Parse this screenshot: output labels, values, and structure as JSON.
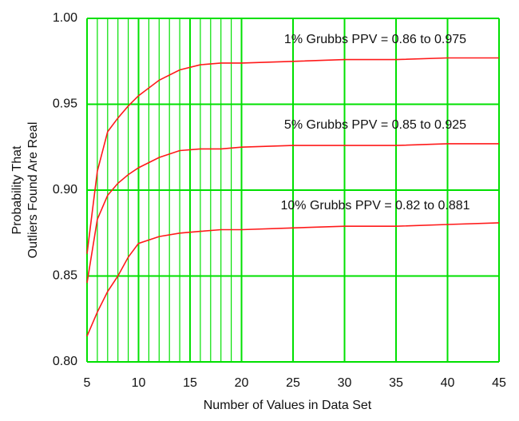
{
  "chart_data": {
    "type": "line",
    "xlabel": "Number of Values in Data Set",
    "ylabel": [
      "Probability That",
      "Outliers Found Are Real"
    ],
    "x": [
      5,
      6,
      7,
      8,
      9,
      10,
      12,
      14,
      16,
      18,
      20,
      25,
      30,
      35,
      40,
      45
    ],
    "series": [
      {
        "color": "#ff1a1a",
        "values": [
          0.863,
          0.911,
          0.934,
          0.942,
          0.949,
          0.955,
          0.964,
          0.97,
          0.973,
          0.974,
          0.974,
          0.975,
          0.976,
          0.976,
          0.977,
          0.977
        ]
      },
      {
        "color": "#ff1a1a",
        "values": [
          0.846,
          0.883,
          0.897,
          0.904,
          0.909,
          0.913,
          0.919,
          0.923,
          0.924,
          0.924,
          0.925,
          0.926,
          0.926,
          0.926,
          0.927,
          0.927
        ]
      },
      {
        "color": "#ff1a1a",
        "values": [
          0.815,
          0.829,
          0.841,
          0.85,
          0.861,
          0.869,
          0.873,
          0.875,
          0.876,
          0.877,
          0.877,
          0.878,
          0.879,
          0.879,
          0.88,
          0.881
        ]
      }
    ],
    "annotations": [
      "1% Grubbs  PPV =  0.86 to 0.975",
      "5% Grubbs  PPV = 0.85 to 0.925",
      "10% Grubbs  PPV = 0.82 to 0.881"
    ],
    "xlim": [
      5,
      45
    ],
    "ylim": [
      0.8,
      1.0
    ],
    "xticks": [
      5,
      10,
      15,
      20,
      25,
      30,
      35,
      40,
      45
    ],
    "xminorticks": [
      6,
      7,
      8,
      9,
      11,
      12,
      13,
      14,
      16,
      17,
      18,
      19
    ],
    "yticks": [
      {
        "value": 0.8,
        "label": "0.80"
      },
      {
        "value": 0.85,
        "label": "0.85"
      },
      {
        "value": 0.9,
        "label": "0.90"
      },
      {
        "value": 0.95,
        "label": "0.95"
      },
      {
        "value": 1.0,
        "label": "1.00"
      }
    ],
    "grid": true,
    "grid_color": "#00e000"
  }
}
